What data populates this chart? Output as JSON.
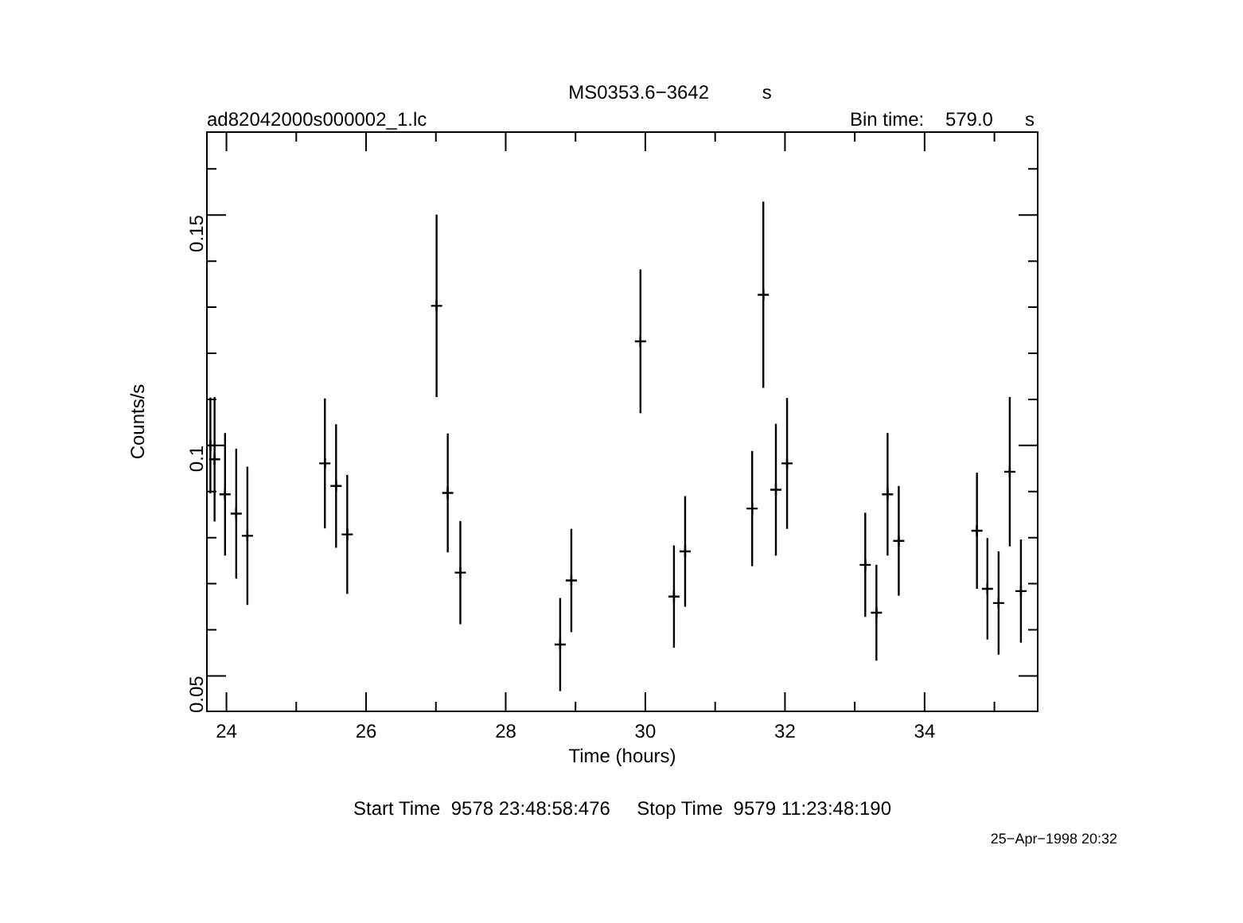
{
  "chart_data": {
    "type": "scatter",
    "title": "MS0353.6−3642          s",
    "subtitle": "ad82042000s000002_1.lc",
    "xlabel": "Time (hours)",
    "ylabel": "Counts/s",
    "annotations": [
      "Bin time:    579.0      s",
      "Start Time  9578 23:48:58:476     Stop Time  9579 11:23:48:190",
      "25−Apr−1998 20:32"
    ],
    "x": [
      23.77,
      23.83,
      23.98,
      24.14,
      24.3,
      25.41,
      25.57,
      25.73,
      27.01,
      27.17,
      27.35,
      28.78,
      28.94,
      29.93,
      30.41,
      30.57,
      31.53,
      31.69,
      31.87,
      32.03,
      33.15,
      33.31,
      33.47,
      33.63,
      34.75,
      34.9,
      35.06,
      35.22,
      35.38
    ],
    "values": [
      0.1,
      0.097,
      0.0894,
      0.0852,
      0.0804,
      0.0961,
      0.0912,
      0.0807,
      0.1303,
      0.0897,
      0.0724,
      0.0568,
      0.0707,
      0.1226,
      0.0672,
      0.077,
      0.0863,
      0.1327,
      0.0904,
      0.0961,
      0.0741,
      0.0637,
      0.0894,
      0.0793,
      0.0815,
      0.0689,
      0.0658,
      0.0943,
      0.0684
    ],
    "errors": [
      0.0104,
      0.0135,
      0.0133,
      0.0141,
      0.015,
      0.0141,
      0.0134,
      0.0129,
      0.0198,
      0.0129,
      0.0112,
      0.0101,
      0.0112,
      0.0156,
      0.0111,
      0.012,
      0.0125,
      0.0202,
      0.0143,
      0.0142,
      0.0113,
      0.0104,
      0.0133,
      0.0119,
      0.0126,
      0.011,
      0.0112,
      0.0162,
      0.0112
    ],
    "color": "#000000",
    "marker": "cross",
    "grid": false,
    "legend": false,
    "xlim": [
      23.72,
      35.62
    ],
    "xticks": [
      24,
      {
        "value": 25,
        "label": null
      },
      26,
      {
        "value": 27,
        "label": null
      },
      28,
      {
        "value": 29,
        "label": null
      },
      30,
      {
        "value": 31,
        "label": null
      },
      32,
      {
        "value": 33,
        "label": null
      },
      34,
      {
        "value": 35,
        "label": null
      }
    ],
    "ylim": [
      0.0423,
      0.168
    ],
    "yticks": [
      0.05,
      {
        "value": 0.06,
        "label": null
      },
      {
        "value": 0.07,
        "label": null
      },
      {
        "value": 0.08,
        "label": null
      },
      {
        "value": 0.09,
        "label": null
      },
      0.1,
      {
        "value": 0.11,
        "label": null
      },
      {
        "value": 0.12,
        "label": null
      },
      {
        "value": 0.13,
        "label": null
      },
      {
        "value": 0.14,
        "label": null
      },
      0.15,
      {
        "value": 0.16,
        "label": null
      }
    ]
  }
}
